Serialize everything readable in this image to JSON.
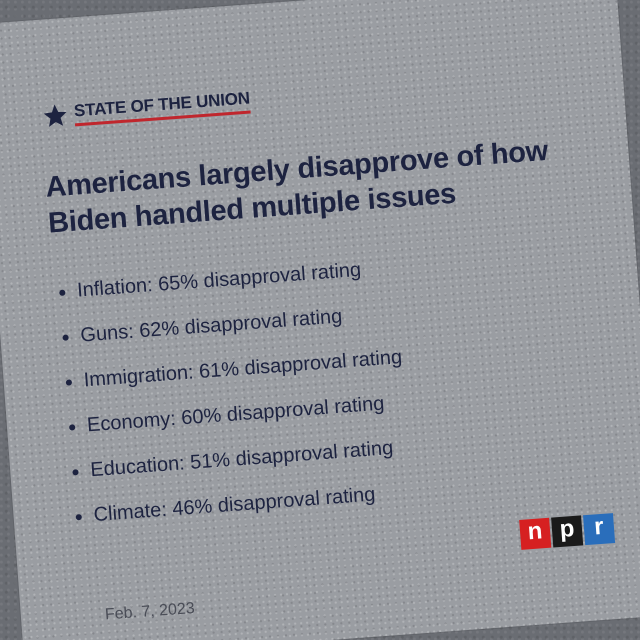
{
  "brand": {
    "label": "STATE OF THE UNION",
    "star_icon": "star-icon",
    "accent_color": "#c0262d"
  },
  "headline": "Americans largely disapprove of how Biden handled multiple issues",
  "issues": [
    {
      "text": "Inflation: 65% disapproval rating"
    },
    {
      "text": "Guns: 62% disapproval rating"
    },
    {
      "text": "Immigration: 61% disapproval rating"
    },
    {
      "text": "Economy: 60% disapproval rating"
    },
    {
      "text": "Education: 51% disapproval rating"
    },
    {
      "text": "Climate: 46% disapproval rating"
    }
  ],
  "date": "Feb. 7, 2023",
  "npr_logo": {
    "letters": [
      "n",
      "p",
      "r"
    ],
    "colors": [
      "#d62021",
      "#1a1a1a",
      "#2a6ebb"
    ]
  },
  "colors": {
    "text": "#1d2340",
    "card": "#9a9da2"
  }
}
